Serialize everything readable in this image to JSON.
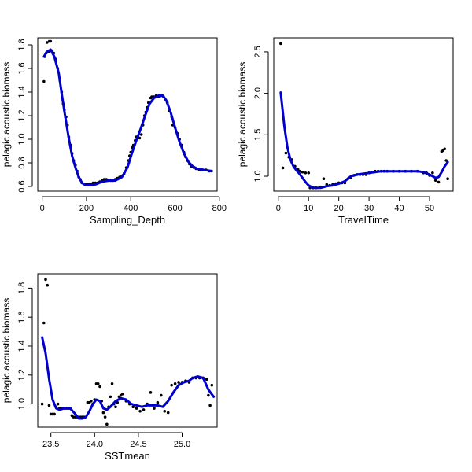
{
  "chart_data": [
    {
      "type": "scatter",
      "xlabel": "Sampling_Depth",
      "ylabel": "pelagic acoustic biomass",
      "xlim": [
        -20,
        790
      ],
      "ylim": [
        0.56,
        1.86
      ],
      "xticks": [
        0,
        200,
        400,
        600,
        800
      ],
      "xtick_labels": [
        "0",
        "200",
        "400",
        "600",
        "800"
      ],
      "yticks": [
        0.6,
        0.8,
        1.0,
        1.2,
        1.4,
        1.6,
        1.8
      ],
      "ytick_labels": [
        "0.6",
        "0.8",
        "1.0",
        "1.2",
        "1.4",
        "1.6",
        "1.8"
      ],
      "point_color": "#000000",
      "line_color": "#0000cc",
      "points": [
        [
          8,
          1.49
        ],
        [
          12,
          1.7
        ],
        [
          18,
          1.73
        ],
        [
          22,
          1.82
        ],
        [
          28,
          1.74
        ],
        [
          32,
          1.83
        ],
        [
          38,
          1.83
        ],
        [
          45,
          1.75
        ],
        [
          52,
          1.73
        ],
        [
          60,
          1.68
        ],
        [
          70,
          1.6
        ],
        [
          80,
          1.5
        ],
        [
          88,
          1.4
        ],
        [
          95,
          1.3
        ],
        [
          100,
          1.25
        ],
        [
          108,
          1.19
        ],
        [
          114,
          1.12
        ],
        [
          120,
          1.02
        ],
        [
          128,
          0.95
        ],
        [
          135,
          0.88
        ],
        [
          142,
          0.82
        ],
        [
          150,
          0.78
        ],
        [
          158,
          0.73
        ],
        [
          165,
          0.68
        ],
        [
          172,
          0.66
        ],
        [
          180,
          0.63
        ],
        [
          190,
          0.62
        ],
        [
          200,
          0.62
        ],
        [
          210,
          0.62
        ],
        [
          220,
          0.62
        ],
        [
          230,
          0.63
        ],
        [
          240,
          0.63
        ],
        [
          250,
          0.63
        ],
        [
          260,
          0.64
        ],
        [
          270,
          0.65
        ],
        [
          280,
          0.66
        ],
        [
          290,
          0.66
        ],
        [
          300,
          0.65
        ],
        [
          310,
          0.65
        ],
        [
          320,
          0.65
        ],
        [
          330,
          0.66
        ],
        [
          340,
          0.67
        ],
        [
          350,
          0.68
        ],
        [
          360,
          0.69
        ],
        [
          370,
          0.71
        ],
        [
          380,
          0.76
        ],
        [
          390,
          0.82
        ],
        [
          395,
          0.86
        ],
        [
          400,
          0.89
        ],
        [
          408,
          0.93
        ],
        [
          412,
          0.95
        ],
        [
          420,
          0.99
        ],
        [
          425,
          1.02
        ],
        [
          432,
          1.02
        ],
        [
          440,
          1.01
        ],
        [
          448,
          1.04
        ],
        [
          455,
          1.12
        ],
        [
          462,
          1.2
        ],
        [
          468,
          1.23
        ],
        [
          475,
          1.27
        ],
        [
          480,
          1.31
        ],
        [
          490,
          1.35
        ],
        [
          495,
          1.36
        ],
        [
          505,
          1.36
        ],
        [
          515,
          1.37
        ],
        [
          520,
          1.36
        ],
        [
          530,
          1.36
        ],
        [
          540,
          1.37
        ],
        [
          548,
          1.36
        ],
        [
          555,
          1.34
        ],
        [
          565,
          1.31
        ],
        [
          575,
          1.24
        ],
        [
          585,
          1.19
        ],
        [
          590,
          1.12
        ],
        [
          600,
          1.1
        ],
        [
          610,
          1.05
        ],
        [
          620,
          1.0
        ],
        [
          630,
          0.95
        ],
        [
          640,
          0.89
        ],
        [
          648,
          0.85
        ],
        [
          655,
          0.82
        ],
        [
          665,
          0.79
        ],
        [
          675,
          0.77
        ],
        [
          685,
          0.76
        ],
        [
          695,
          0.75
        ],
        [
          710,
          0.74
        ],
        [
          725,
          0.74
        ],
        [
          740,
          0.74
        ],
        [
          755,
          0.73
        ],
        [
          765,
          0.73
        ]
      ],
      "fit": [
        [
          8,
          1.7
        ],
        [
          20,
          1.74
        ],
        [
          38,
          1.76
        ],
        [
          55,
          1.7
        ],
        [
          75,
          1.56
        ],
        [
          90,
          1.36
        ],
        [
          105,
          1.18
        ],
        [
          120,
          1.01
        ],
        [
          135,
          0.86
        ],
        [
          150,
          0.76
        ],
        [
          165,
          0.68
        ],
        [
          180,
          0.63
        ],
        [
          200,
          0.61
        ],
        [
          220,
          0.61
        ],
        [
          245,
          0.62
        ],
        [
          270,
          0.64
        ],
        [
          300,
          0.65
        ],
        [
          330,
          0.65
        ],
        [
          360,
          0.68
        ],
        [
          385,
          0.76
        ],
        [
          405,
          0.88
        ],
        [
          425,
          0.99
        ],
        [
          445,
          1.09
        ],
        [
          465,
          1.2
        ],
        [
          485,
          1.3
        ],
        [
          505,
          1.35
        ],
        [
          525,
          1.37
        ],
        [
          545,
          1.37
        ],
        [
          560,
          1.33
        ],
        [
          580,
          1.23
        ],
        [
          600,
          1.1
        ],
        [
          620,
          0.98
        ],
        [
          640,
          0.88
        ],
        [
          660,
          0.81
        ],
        [
          680,
          0.77
        ],
        [
          700,
          0.75
        ],
        [
          730,
          0.74
        ],
        [
          765,
          0.73
        ]
      ]
    },
    {
      "type": "scatter",
      "xlabel": "TravelTime",
      "ylabel": "pelagic acoustic biomass",
      "xlim": [
        -1.5,
        57.8
      ],
      "ylim": [
        0.82,
        2.67
      ],
      "xticks": [
        0,
        10,
        20,
        30,
        40,
        50
      ],
      "xtick_labels": [
        "0",
        "10",
        "20",
        "30",
        "40",
        "50"
      ],
      "yticks": [
        1.0,
        1.5,
        2.0,
        2.5
      ],
      "ytick_labels": [
        "1.0",
        "1.5",
        "2.0",
        "2.5"
      ],
      "point_color": "#000000",
      "line_color": "#0000cc",
      "points": [
        [
          0.8,
          2.6
        ],
        [
          1.5,
          1.1
        ],
        [
          2.5,
          1.28
        ],
        [
          3.5,
          1.23
        ],
        [
          4.5,
          1.2
        ],
        [
          5.5,
          1.12
        ],
        [
          6.5,
          1.08
        ],
        [
          7,
          1.06
        ],
        [
          8,
          1.05
        ],
        [
          9,
          1.04
        ],
        [
          10,
          1.04
        ],
        [
          10.5,
          0.86
        ],
        [
          11.5,
          0.86
        ],
        [
          12.5,
          0.86
        ],
        [
          14,
          0.87
        ],
        [
          15,
          0.97
        ],
        [
          16,
          0.9
        ],
        [
          17,
          0.89
        ],
        [
          18,
          0.9
        ],
        [
          19,
          0.91
        ],
        [
          20,
          0.92
        ],
        [
          21,
          0.92
        ],
        [
          22,
          0.92
        ],
        [
          23,
          0.97
        ],
        [
          24,
          0.98
        ],
        [
          25,
          1.01
        ],
        [
          26,
          1.02
        ],
        [
          27,
          1.02
        ],
        [
          28,
          1.02
        ],
        [
          29,
          1.02
        ],
        [
          30,
          1.04
        ],
        [
          31,
          1.05
        ],
        [
          32,
          1.06
        ],
        [
          33,
          1.06
        ],
        [
          34,
          1.06
        ],
        [
          35,
          1.06
        ],
        [
          36,
          1.06
        ],
        [
          38,
          1.06
        ],
        [
          40,
          1.06
        ],
        [
          42,
          1.06
        ],
        [
          44,
          1.06
        ],
        [
          46,
          1.06
        ],
        [
          48,
          1.04
        ],
        [
          49,
          1.04
        ],
        [
          50,
          1.01
        ],
        [
          51,
          1.04
        ],
        [
          52,
          0.95
        ],
        [
          53,
          0.93
        ],
        [
          54,
          1.3
        ],
        [
          54.5,
          1.31
        ],
        [
          55,
          1.33
        ],
        [
          55.5,
          1.19
        ],
        [
          56,
          0.97
        ]
      ],
      "fit": [
        [
          0.8,
          2.01
        ],
        [
          2,
          1.6
        ],
        [
          3,
          1.35
        ],
        [
          4,
          1.2
        ],
        [
          5,
          1.12
        ],
        [
          6,
          1.07
        ],
        [
          7,
          1.03
        ],
        [
          8,
          0.98
        ],
        [
          9,
          0.93
        ],
        [
          10,
          0.89
        ],
        [
          11,
          0.87
        ],
        [
          12,
          0.86
        ],
        [
          14,
          0.86
        ],
        [
          16,
          0.88
        ],
        [
          18,
          0.89
        ],
        [
          20,
          0.91
        ],
        [
          22,
          0.94
        ],
        [
          24,
          1.0
        ],
        [
          26,
          1.02
        ],
        [
          28,
          1.03
        ],
        [
          30,
          1.04
        ],
        [
          32,
          1.05
        ],
        [
          34,
          1.06
        ],
        [
          38,
          1.06
        ],
        [
          42,
          1.06
        ],
        [
          46,
          1.06
        ],
        [
          48,
          1.05
        ],
        [
          50,
          1.02
        ],
        [
          52,
          0.98
        ],
        [
          53,
          0.99
        ],
        [
          54,
          1.05
        ],
        [
          55,
          1.12
        ],
        [
          56,
          1.17
        ]
      ]
    },
    {
      "type": "scatter",
      "xlabel": "SSTmean",
      "ylabel": "pelagic acoustic biomass",
      "xlim": [
        23.35,
        25.4
      ],
      "ylim": [
        0.84,
        1.9
      ],
      "xticks": [
        23.5,
        24.0,
        24.5,
        25.0
      ],
      "xtick_labels": [
        "23.5",
        "24.0",
        "24.5",
        "25.0"
      ],
      "yticks": [
        1.0,
        1.2,
        1.4,
        1.6,
        1.8
      ],
      "ytick_labels": [
        "1.0",
        "1.2",
        "1.4",
        "1.6",
        "1.8"
      ],
      "point_color": "#000000",
      "line_color": "#0000cc",
      "points": [
        [
          23.4,
          1.0
        ],
        [
          23.42,
          1.56
        ],
        [
          23.44,
          1.86
        ],
        [
          23.46,
          1.82
        ],
        [
          23.48,
          0.99
        ],
        [
          23.5,
          0.93
        ],
        [
          23.52,
          0.93
        ],
        [
          23.54,
          0.93
        ],
        [
          23.56,
          0.98
        ],
        [
          23.58,
          1.0
        ],
        [
          23.6,
          0.97
        ],
        [
          23.62,
          0.97
        ],
        [
          23.64,
          0.97
        ],
        [
          23.66,
          0.97
        ],
        [
          23.68,
          0.97
        ],
        [
          23.7,
          0.97
        ],
        [
          23.72,
          0.97
        ],
        [
          23.74,
          0.92
        ],
        [
          23.76,
          0.91
        ],
        [
          23.78,
          0.91
        ],
        [
          23.8,
          0.91
        ],
        [
          23.82,
          0.91
        ],
        [
          23.84,
          0.91
        ],
        [
          23.86,
          0.91
        ],
        [
          23.88,
          0.91
        ],
        [
          23.92,
          1.01
        ],
        [
          23.94,
          1.01
        ],
        [
          23.96,
          1.02
        ],
        [
          23.98,
          1.0
        ],
        [
          24.0,
          1.03
        ],
        [
          24.02,
          1.14
        ],
        [
          24.04,
          1.14
        ],
        [
          24.06,
          1.12
        ],
        [
          24.08,
          1.02
        ],
        [
          24.1,
          0.94
        ],
        [
          24.12,
          0.91
        ],
        [
          24.14,
          0.86
        ],
        [
          24.16,
          0.98
        ],
        [
          24.18,
          1.05
        ],
        [
          24.2,
          1.14
        ],
        [
          24.22,
          1.0
        ],
        [
          24.24,
          0.98
        ],
        [
          24.26,
          1.01
        ],
        [
          24.28,
          1.05
        ],
        [
          24.3,
          1.06
        ],
        [
          24.32,
          1.07
        ],
        [
          24.36,
          1.02
        ],
        [
          24.4,
          1.0
        ],
        [
          24.44,
          0.98
        ],
        [
          24.48,
          0.97
        ],
        [
          24.52,
          0.95
        ],
        [
          24.56,
          0.96
        ],
        [
          24.6,
          1.0
        ],
        [
          24.64,
          1.08
        ],
        [
          24.68,
          0.97
        ],
        [
          24.72,
          1.01
        ],
        [
          24.76,
          1.06
        ],
        [
          24.8,
          0.95
        ],
        [
          24.84,
          0.94
        ],
        [
          24.88,
          1.13
        ],
        [
          24.92,
          1.14
        ],
        [
          24.96,
          1.15
        ],
        [
          25.0,
          1.15
        ],
        [
          25.04,
          1.16
        ],
        [
          25.08,
          1.15
        ],
        [
          25.12,
          1.18
        ],
        [
          25.16,
          1.18
        ],
        [
          25.2,
          1.18
        ],
        [
          25.24,
          1.18
        ],
        [
          25.28,
          1.17
        ],
        [
          25.3,
          1.06
        ],
        [
          25.32,
          0.99
        ],
        [
          25.34,
          1.13
        ]
      ],
      "fit": [
        [
          23.4,
          1.46
        ],
        [
          23.44,
          1.35
        ],
        [
          23.48,
          1.17
        ],
        [
          23.52,
          1.03
        ],
        [
          23.56,
          0.97
        ],
        [
          23.6,
          0.96
        ],
        [
          23.65,
          0.97
        ],
        [
          23.72,
          0.97
        ],
        [
          23.78,
          0.93
        ],
        [
          23.82,
          0.9
        ],
        [
          23.86,
          0.9
        ],
        [
          23.9,
          0.91
        ],
        [
          23.94,
          0.95
        ],
        [
          23.98,
          1.0
        ],
        [
          24.02,
          1.03
        ],
        [
          24.06,
          1.02
        ],
        [
          24.1,
          0.97
        ],
        [
          24.14,
          0.96
        ],
        [
          24.18,
          0.98
        ],
        [
          24.24,
          1.02
        ],
        [
          24.3,
          1.04
        ],
        [
          24.36,
          1.03
        ],
        [
          24.42,
          1.0
        ],
        [
          24.48,
          0.99
        ],
        [
          24.54,
          0.98
        ],
        [
          24.6,
          0.99
        ],
        [
          24.66,
          0.99
        ],
        [
          24.72,
          0.99
        ],
        [
          24.78,
          0.98
        ],
        [
          24.84,
          1.02
        ],
        [
          24.9,
          1.08
        ],
        [
          24.96,
          1.13
        ],
        [
          25.02,
          1.15
        ],
        [
          25.08,
          1.16
        ],
        [
          25.12,
          1.18
        ],
        [
          25.18,
          1.19
        ],
        [
          25.24,
          1.18
        ],
        [
          25.3,
          1.1
        ],
        [
          25.36,
          1.05
        ]
      ]
    }
  ]
}
